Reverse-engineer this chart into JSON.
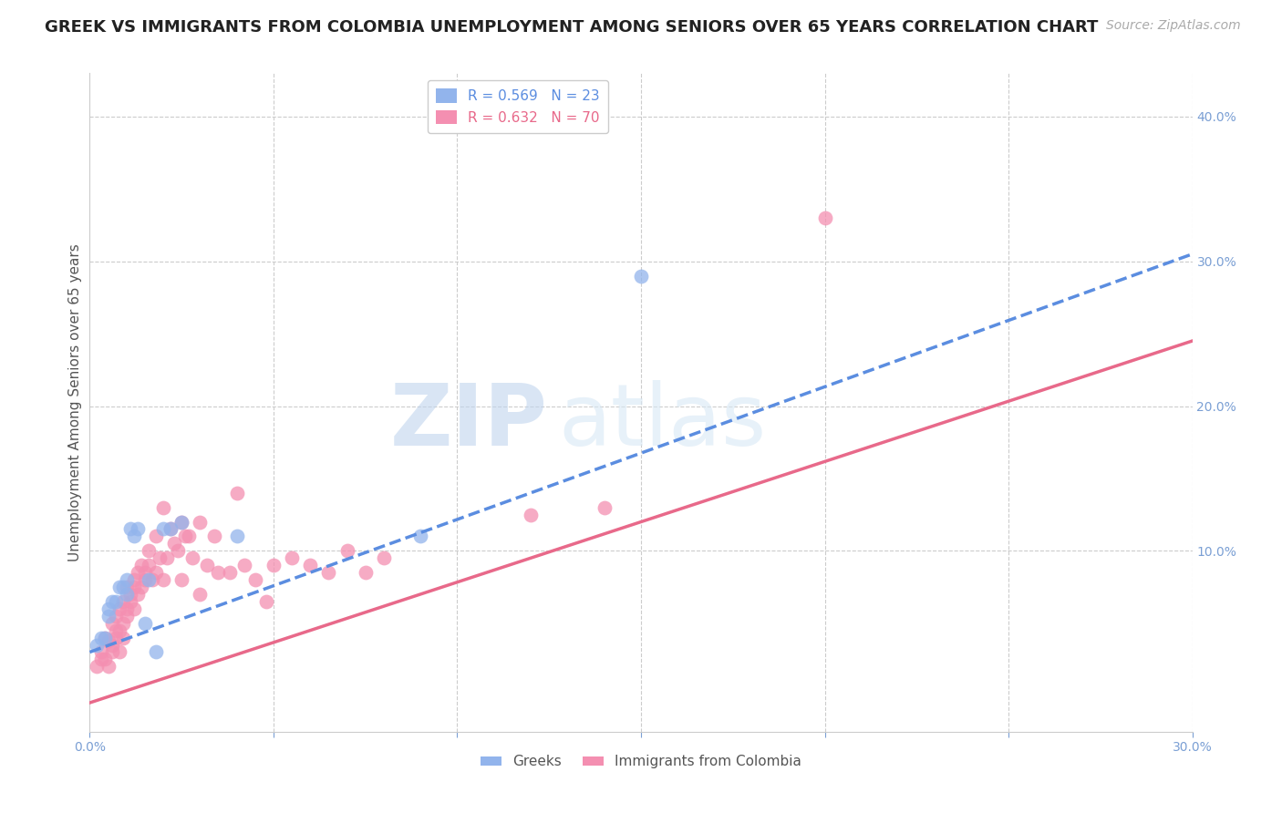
{
  "title": "GREEK VS IMMIGRANTS FROM COLOMBIA UNEMPLOYMENT AMONG SENIORS OVER 65 YEARS CORRELATION CHART",
  "source": "Source: ZipAtlas.com",
  "ylabel": "Unemployment Among Seniors over 65 years",
  "xlim": [
    0.0,
    0.3
  ],
  "ylim": [
    -0.025,
    0.43
  ],
  "xticks": [
    0.0,
    0.05,
    0.1,
    0.15,
    0.2,
    0.25,
    0.3
  ],
  "yticks_right": [
    0.1,
    0.2,
    0.3,
    0.4
  ],
  "greek_R": 0.569,
  "greek_N": 23,
  "colombia_R": 0.632,
  "colombia_N": 70,
  "greek_color": "#92b4ec",
  "colombia_color": "#f48fb1",
  "greek_line_color": "#5b8de0",
  "colombia_line_color": "#e8698a",
  "background_color": "#ffffff",
  "grid_color": "#cccccc",
  "axis_color": "#7a9fd4",
  "greek_scatter_x": [
    0.002,
    0.003,
    0.004,
    0.005,
    0.005,
    0.006,
    0.007,
    0.008,
    0.009,
    0.01,
    0.01,
    0.011,
    0.012,
    0.013,
    0.015,
    0.016,
    0.018,
    0.02,
    0.022,
    0.025,
    0.04,
    0.09,
    0.15
  ],
  "greek_scatter_y": [
    0.035,
    0.04,
    0.04,
    0.06,
    0.055,
    0.065,
    0.065,
    0.075,
    0.075,
    0.07,
    0.08,
    0.115,
    0.11,
    0.115,
    0.05,
    0.08,
    0.03,
    0.115,
    0.115,
    0.12,
    0.11,
    0.11,
    0.29
  ],
  "colombia_scatter_x": [
    0.002,
    0.003,
    0.003,
    0.004,
    0.004,
    0.005,
    0.005,
    0.006,
    0.006,
    0.006,
    0.007,
    0.007,
    0.007,
    0.008,
    0.008,
    0.008,
    0.009,
    0.009,
    0.009,
    0.01,
    0.01,
    0.01,
    0.011,
    0.011,
    0.012,
    0.012,
    0.012,
    0.013,
    0.013,
    0.014,
    0.014,
    0.015,
    0.015,
    0.016,
    0.016,
    0.017,
    0.018,
    0.018,
    0.019,
    0.02,
    0.02,
    0.021,
    0.022,
    0.023,
    0.024,
    0.025,
    0.025,
    0.026,
    0.027,
    0.028,
    0.03,
    0.03,
    0.032,
    0.034,
    0.035,
    0.038,
    0.04,
    0.042,
    0.045,
    0.048,
    0.05,
    0.055,
    0.06,
    0.065,
    0.07,
    0.075,
    0.08,
    0.12,
    0.14,
    0.2
  ],
  "colombia_scatter_y": [
    0.02,
    0.03,
    0.025,
    0.04,
    0.025,
    0.038,
    0.02,
    0.035,
    0.05,
    0.03,
    0.045,
    0.055,
    0.04,
    0.06,
    0.045,
    0.03,
    0.05,
    0.065,
    0.04,
    0.06,
    0.055,
    0.075,
    0.07,
    0.065,
    0.075,
    0.06,
    0.08,
    0.07,
    0.085,
    0.075,
    0.09,
    0.08,
    0.085,
    0.09,
    0.1,
    0.08,
    0.085,
    0.11,
    0.095,
    0.13,
    0.08,
    0.095,
    0.115,
    0.105,
    0.1,
    0.12,
    0.08,
    0.11,
    0.11,
    0.095,
    0.12,
    0.07,
    0.09,
    0.11,
    0.085,
    0.085,
    0.14,
    0.09,
    0.08,
    0.065,
    0.09,
    0.095,
    0.09,
    0.085,
    0.1,
    0.085,
    0.095,
    0.125,
    0.13,
    0.33
  ],
  "greek_line_x": [
    0.0,
    0.3
  ],
  "greek_line_y": [
    0.03,
    0.305
  ],
  "colombia_line_x": [
    0.0,
    0.3
  ],
  "colombia_line_y": [
    -0.005,
    0.245
  ],
  "title_fontsize": 13,
  "source_fontsize": 10,
  "legend_fontsize": 11,
  "ylabel_fontsize": 11,
  "tick_fontsize": 10
}
